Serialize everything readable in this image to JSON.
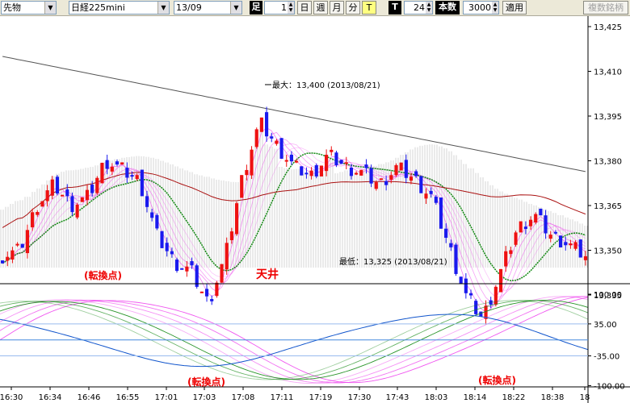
{
  "toolbar": {
    "market": "先物",
    "instrument": "日経225mini",
    "contract": "13/09",
    "bar_label": "足",
    "bar_value": "1",
    "period_day": "日",
    "period_week": "週",
    "period_month": "月",
    "period_minute": "分",
    "period_tick": "T",
    "tick_label": "T",
    "tick_value": "24",
    "count_label": "本数",
    "count_value": "3000",
    "apply": "適用",
    "compare": "複数銘柄"
  },
  "annotations": {
    "max_label": "最大：13,400 (2013/08/21)",
    "min_label": "最低：13,325 (2013/08/21)",
    "turning_top_left": "(転換点)",
    "ceiling": "天井",
    "turning_bottom_1": "(転換点)",
    "turning_bottom_2": "(転換点)"
  },
  "colors": {
    "up": "#ee1111",
    "down": "#1a1aee",
    "ma_short": "#ee44ee",
    "ma_mid": "#118811",
    "ma_long": "#aa1111",
    "ma_longest": "#555555",
    "ichimoku_cloud": "#9a9a9a",
    "annotation": "#ee0000"
  },
  "chart_data": [
    {
      "type": "candlestick",
      "title": "",
      "y_ticks": [
        "13,425",
        "13,410",
        "13,395",
        "13,380",
        "13,365",
        "13,350",
        "13,335"
      ],
      "x_ticks": [
        "16:30",
        "16:34",
        "16:46",
        "16:55",
        "17:01",
        "17:03",
        "17:08",
        "17:11",
        "17:19",
        "17:30",
        "17:43",
        "18:03",
        "18:14",
        "18:22",
        "18:38",
        "18"
      ],
      "ylim": [
        13320,
        13430
      ],
      "max": 13400,
      "min": 13325,
      "close_series": [
        13348,
        13350,
        13365,
        13372,
        13365,
        13368,
        13380,
        13377,
        13373,
        13355,
        13346,
        13343,
        13332,
        13348,
        13375,
        13393,
        13385,
        13378,
        13375,
        13382,
        13378,
        13376,
        13372,
        13378,
        13374,
        13368,
        13352,
        13335,
        13327,
        13342,
        13357,
        13362,
        13355,
        13352,
        13348
      ]
    },
    {
      "type": "line",
      "title": "",
      "y_ticks": [
        "100.00",
        "35.00",
        "-35.00",
        "-100.00"
      ],
      "ylim": [
        -100,
        100
      ]
    }
  ]
}
